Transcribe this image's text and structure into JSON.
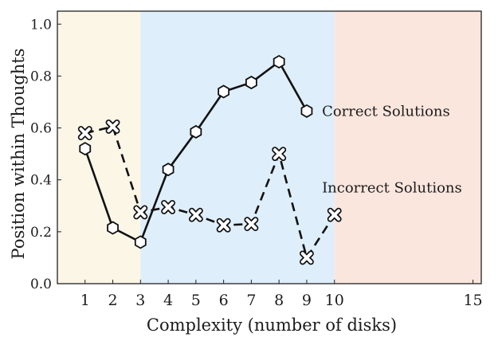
{
  "chart_data": {
    "type": "line",
    "xlabel": "Complexity (number of disks)",
    "ylabel": "Position within Thoughts",
    "xlim": [
      0,
      15.3
    ],
    "ylim": [
      0,
      1.05
    ],
    "xticks": [
      1,
      2,
      3,
      4,
      5,
      6,
      7,
      8,
      9,
      10,
      15
    ],
    "yticks": [
      0.0,
      0.2,
      0.4,
      0.6,
      0.8,
      1.0
    ],
    "ytick_labels": [
      "0.0",
      "0.2",
      "0.4",
      "0.6",
      "0.8",
      "1.0"
    ],
    "grid": false,
    "regions": [
      {
        "x_start": 0,
        "x_end": 3,
        "color": "#fbf6e6"
      },
      {
        "x_start": 3,
        "x_end": 10,
        "color": "#deeefb"
      },
      {
        "x_start": 10,
        "x_end": 15.3,
        "color": "#fbe6de"
      }
    ],
    "series": [
      {
        "name": "Correct Solutions",
        "marker": "hexagon",
        "line_style": "solid",
        "color": "#111111",
        "x": [
          1,
          2,
          3,
          4,
          5,
          6,
          7,
          8,
          9
        ],
        "y": [
          0.52,
          0.215,
          0.16,
          0.44,
          0.585,
          0.74,
          0.775,
          0.855,
          0.665
        ]
      },
      {
        "name": "Incorrect Solutions",
        "marker": "x-cross",
        "line_style": "dashed",
        "color": "#111111",
        "x": [
          1,
          2,
          3,
          4,
          5,
          6,
          7,
          8,
          9,
          10
        ],
        "y": [
          0.58,
          0.605,
          0.275,
          0.295,
          0.265,
          0.225,
          0.23,
          0.5,
          0.1,
          0.265
        ]
      }
    ],
    "annotations": [
      {
        "text": "Correct Solutions",
        "x": 9.55,
        "y": 0.665
      },
      {
        "text": "Incorrect Solutions",
        "x": 9.55,
        "y": 0.37
      }
    ]
  }
}
